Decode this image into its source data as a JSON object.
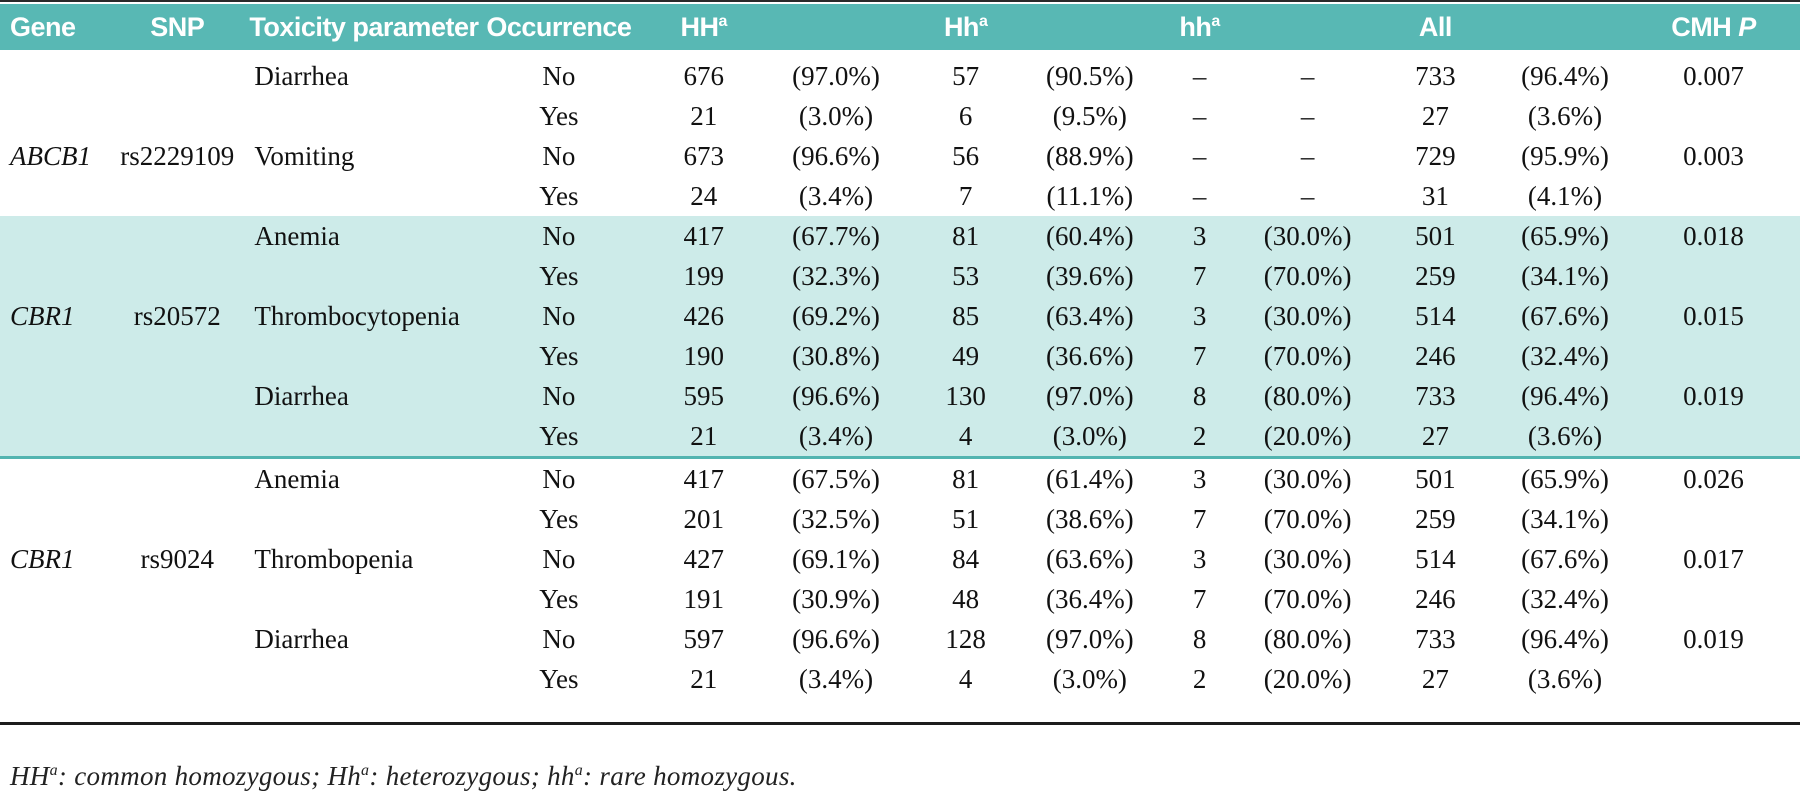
{
  "colors": {
    "header_bg": "#58b8b4",
    "band_bg": "#cdebe9",
    "band_border": "#52b4b0",
    "rule": "#1d1d1d",
    "header_text": "#ffffff"
  },
  "table": {
    "columns": [
      {
        "key": "gene",
        "label": "Gene",
        "sup": "",
        "align": "left"
      },
      {
        "key": "snp",
        "label": "SNP",
        "sup": "",
        "align": "center"
      },
      {
        "key": "tox",
        "label": "Toxicity parameter",
        "sup": "",
        "align": "left"
      },
      {
        "key": "occ",
        "label": "Occurrence",
        "sup": "",
        "align": "center"
      },
      {
        "key": "HH",
        "label": "HH",
        "sup": "a",
        "align": "center"
      },
      {
        "key": "HH_pct",
        "label": "",
        "sup": "",
        "align": "center"
      },
      {
        "key": "Hh",
        "label": "Hh",
        "sup": "a",
        "align": "center"
      },
      {
        "key": "Hh_pct",
        "label": "",
        "sup": "",
        "align": "center"
      },
      {
        "key": "hh",
        "label": "hh",
        "sup": "a",
        "align": "center"
      },
      {
        "key": "hh_pct",
        "label": "",
        "sup": "",
        "align": "center"
      },
      {
        "key": "all",
        "label": "All",
        "sup": "",
        "align": "center"
      },
      {
        "key": "all_pct",
        "label": "",
        "sup": "",
        "align": "center"
      },
      {
        "key": "p",
        "label": "CMH ",
        "sup": "",
        "align": "center",
        "italic_suffix": "P"
      }
    ],
    "rows": [
      {
        "band": false,
        "gene": "",
        "snp": "",
        "tox": "Diarrhea",
        "occ": "No",
        "HH": "676",
        "HH_pct": "(97.0%)",
        "Hh": "57",
        "Hh_pct": "(90.5%)",
        "hh": "–",
        "hh_pct": "(–)",
        "all": "733",
        "all_pct": "(96.4%)",
        "p": "0.007"
      },
      {
        "band": false,
        "gene": "",
        "snp": "",
        "tox": "",
        "occ": "Yes",
        "HH": "21",
        "HH_pct": "(3.0%)",
        "Hh": "6",
        "Hh_pct": "(9.5%)",
        "hh": "–",
        "hh_pct": "(–)",
        "all": "27",
        "all_pct": "(3.6%)",
        "p": ""
      },
      {
        "band": false,
        "gene": "ABCB1",
        "snp": "rs2229109",
        "tox": "Vomiting",
        "occ": "No",
        "HH": "673",
        "HH_pct": "(96.6%)",
        "Hh": "56",
        "Hh_pct": "(88.9%)",
        "hh": "–",
        "hh_pct": "(–)",
        "all": "729",
        "all_pct": "(95.9%)",
        "p": "0.003"
      },
      {
        "band": false,
        "gene": "",
        "snp": "",
        "tox": "",
        "occ": "Yes",
        "HH": "24",
        "HH_pct": "(3.4%)",
        "Hh": "7",
        "Hh_pct": "(11.1%)",
        "hh": "–",
        "hh_pct": "(–)",
        "all": "31",
        "all_pct": "(4.1%)",
        "p": ""
      },
      {
        "band": true,
        "gene": "",
        "snp": "",
        "tox": "Anemia",
        "occ": "No",
        "HH": "417",
        "HH_pct": "(67.7%)",
        "Hh": "81",
        "Hh_pct": "(60.4%)",
        "hh": "3",
        "hh_pct": "(30.0%)",
        "all": "501",
        "all_pct": "(65.9%)",
        "p": "0.018"
      },
      {
        "band": true,
        "gene": "",
        "snp": "",
        "tox": "",
        "occ": "Yes",
        "HH": "199",
        "HH_pct": "(32.3%)",
        "Hh": "53",
        "Hh_pct": "(39.6%)",
        "hh": "7",
        "hh_pct": "(70.0%)",
        "all": "259",
        "all_pct": "(34.1%)",
        "p": ""
      },
      {
        "band": true,
        "gene": "CBR1",
        "snp": "rs20572",
        "tox": "Thrombocytopenia",
        "occ": "No",
        "HH": "426",
        "HH_pct": "(69.2%)",
        "Hh": "85",
        "Hh_pct": "(63.4%)",
        "hh": "3",
        "hh_pct": "(30.0%)",
        "all": "514",
        "all_pct": "(67.6%)",
        "p": "0.015"
      },
      {
        "band": true,
        "gene": "",
        "snp": "",
        "tox": "",
        "occ": "Yes",
        "HH": "190",
        "HH_pct": "(30.8%)",
        "Hh": "49",
        "Hh_pct": "(36.6%)",
        "hh": "7",
        "hh_pct": "(70.0%)",
        "all": "246",
        "all_pct": "(32.4%)",
        "p": ""
      },
      {
        "band": true,
        "gene": "",
        "snp": "",
        "tox": "Diarrhea",
        "occ": "No",
        "HH": "595",
        "HH_pct": "(96.6%)",
        "Hh": "130",
        "Hh_pct": "(97.0%)",
        "hh": "8",
        "hh_pct": "(80.0%)",
        "all": "733",
        "all_pct": "(96.4%)",
        "p": "0.019"
      },
      {
        "band": true,
        "gene": "",
        "snp": "",
        "tox": "",
        "occ": "Yes",
        "HH": "21",
        "HH_pct": "(3.4%)",
        "Hh": "4",
        "Hh_pct": "(3.0%)",
        "hh": "2",
        "hh_pct": "(20.0%)",
        "all": "27",
        "all_pct": "(3.6%)",
        "p": ""
      },
      {
        "band": false,
        "gene": "",
        "snp": "",
        "tox": "Anemia",
        "occ": "No",
        "HH": "417",
        "HH_pct": "(67.5%)",
        "Hh": "81",
        "Hh_pct": "(61.4%)",
        "hh": "3",
        "hh_pct": "(30.0%)",
        "all": "501",
        "all_pct": "(65.9%)",
        "p": "0.026"
      },
      {
        "band": false,
        "gene": "",
        "snp": "",
        "tox": "",
        "occ": "Yes",
        "HH": "201",
        "HH_pct": "(32.5%)",
        "Hh": "51",
        "Hh_pct": "(38.6%)",
        "hh": "7",
        "hh_pct": "(70.0%)",
        "all": "259",
        "all_pct": "(34.1%)",
        "p": ""
      },
      {
        "band": false,
        "gene": "CBR1",
        "snp": "rs9024",
        "tox": "Thrombopenia",
        "occ": "No",
        "HH": "427",
        "HH_pct": "(69.1%)",
        "Hh": "84",
        "Hh_pct": "(63.6%)",
        "hh": "3",
        "hh_pct": "(30.0%)",
        "all": "514",
        "all_pct": "(67.6%)",
        "p": "0.017"
      },
      {
        "band": false,
        "gene": "",
        "snp": "",
        "tox": "",
        "occ": "Yes",
        "HH": "191",
        "HH_pct": "(30.9%)",
        "Hh": "48",
        "Hh_pct": "(36.4%)",
        "hh": "7",
        "hh_pct": "(70.0%)",
        "all": "246",
        "all_pct": "(32.4%)",
        "p": ""
      },
      {
        "band": false,
        "gene": "",
        "snp": "",
        "tox": "Diarrhea",
        "occ": "No",
        "HH": "597",
        "HH_pct": "(96.6%)",
        "Hh": "128",
        "Hh_pct": "(97.0%)",
        "hh": "8",
        "hh_pct": "(80.0%)",
        "all": "733",
        "all_pct": "(96.4%)",
        "p": "0.019"
      },
      {
        "band": false,
        "gene": "",
        "snp": "",
        "tox": "",
        "occ": "Yes",
        "HH": "21",
        "HH_pct": "(3.4%)",
        "Hh": "4",
        "Hh_pct": "(3.0%)",
        "hh": "2",
        "hh_pct": "(20.0%)",
        "all": "27",
        "all_pct": "(3.6%)",
        "p": ""
      }
    ],
    "dash_display": "–"
  },
  "footnote": {
    "segments": [
      {
        "text": "HH",
        "sup": "a"
      },
      {
        "text": ": common homozygous; "
      },
      {
        "text": "Hh",
        "sup": "a"
      },
      {
        "text": ": heterozygous; "
      },
      {
        "text": "hh",
        "sup": "a"
      },
      {
        "text": ": rare homozygous."
      }
    ]
  }
}
